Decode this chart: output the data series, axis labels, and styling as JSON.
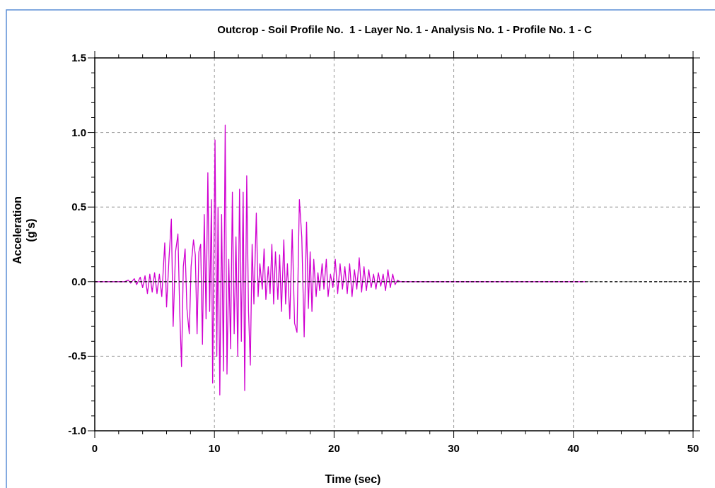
{
  "chart_data": {
    "type": "line",
    "title": "Outcrop - Soil Profile No.  1 - Layer No. 1 - Analysis No. 1 - Profile No. 1 - C",
    "xlabel": "Time (sec)",
    "ylabel": "Acceleration\n(g's)",
    "xlim": [
      0,
      50
    ],
    "ylim": [
      -1.0,
      1.5
    ],
    "xticks": [
      {
        "value": 0,
        "label": "0"
      },
      {
        "value": 2,
        "label": null
      },
      {
        "value": 4,
        "label": null
      },
      {
        "value": 6,
        "label": null
      },
      {
        "value": 8,
        "label": null
      },
      {
        "value": 10,
        "label": "10"
      },
      {
        "value": 12,
        "label": null
      },
      {
        "value": 14,
        "label": null
      },
      {
        "value": 16,
        "label": null
      },
      {
        "value": 18,
        "label": null
      },
      {
        "value": 20,
        "label": "20"
      },
      {
        "value": 22,
        "label": null
      },
      {
        "value": 24,
        "label": null
      },
      {
        "value": 26,
        "label": null
      },
      {
        "value": 28,
        "label": null
      },
      {
        "value": 30,
        "label": "30"
      },
      {
        "value": 32,
        "label": null
      },
      {
        "value": 34,
        "label": null
      },
      {
        "value": 36,
        "label": null
      },
      {
        "value": 38,
        "label": null
      },
      {
        "value": 40,
        "label": "40"
      },
      {
        "value": 42,
        "label": null
      },
      {
        "value": 44,
        "label": null
      },
      {
        "value": 46,
        "label": null
      },
      {
        "value": 48,
        "label": null
      },
      {
        "value": 50,
        "label": "50"
      }
    ],
    "yticks": [
      {
        "value": -1.0,
        "label": "-1.0"
      },
      {
        "value": -0.9,
        "label": null
      },
      {
        "value": -0.8,
        "label": null
      },
      {
        "value": -0.7,
        "label": null
      },
      {
        "value": -0.6,
        "label": null
      },
      {
        "value": -0.5,
        "label": "-0.5"
      },
      {
        "value": -0.4,
        "label": null
      },
      {
        "value": -0.3,
        "label": null
      },
      {
        "value": -0.2,
        "label": null
      },
      {
        "value": -0.1,
        "label": null
      },
      {
        "value": 0,
        "label": "0.0"
      },
      {
        "value": 0.1,
        "label": null
      },
      {
        "value": 0.2,
        "label": null
      },
      {
        "value": 0.3,
        "label": null
      },
      {
        "value": 0.4,
        "label": null
      },
      {
        "value": 0.5,
        "label": "0.5"
      },
      {
        "value": 0.6,
        "label": null
      },
      {
        "value": 0.7,
        "label": null
      },
      {
        "value": 0.8,
        "label": null
      },
      {
        "value": 0.9,
        "label": null
      },
      {
        "value": 1.0,
        "label": "1.0"
      },
      {
        "value": 1.1,
        "label": null
      },
      {
        "value": 1.2,
        "label": null
      },
      {
        "value": 1.3,
        "label": null
      },
      {
        "value": 1.4,
        "label": null
      },
      {
        "value": 1.5,
        "label": "1.5"
      }
    ],
    "grid": true,
    "line_style": "solid",
    "ref_lines": [
      {
        "axis": "y",
        "value": 0,
        "color": "#000000",
        "line_style": "dashed"
      }
    ],
    "series": [
      {
        "color": "#d000d0",
        "x": [
          0,
          2.5,
          2.8,
          3.0,
          3.3,
          3.5,
          3.8,
          4.0,
          4.2,
          4.4,
          4.6,
          4.8,
          5.0,
          5.2,
          5.4,
          5.6,
          5.85,
          6.0,
          6.2,
          6.4,
          6.55,
          6.75,
          6.95,
          7.1,
          7.25,
          7.4,
          7.55,
          7.7,
          7.9,
          8.05,
          8.25,
          8.4,
          8.55,
          8.7,
          8.85,
          9.0,
          9.15,
          9.3,
          9.45,
          9.6,
          9.75,
          9.85,
          10.05,
          10.2,
          10.3,
          10.45,
          10.6,
          10.75,
          10.9,
          11.05,
          11.2,
          11.35,
          11.5,
          11.65,
          11.8,
          11.95,
          12.1,
          12.25,
          12.4,
          12.53,
          12.7,
          12.85,
          13.0,
          13.15,
          13.3,
          13.5,
          13.65,
          13.8,
          14.0,
          14.15,
          14.3,
          14.5,
          14.65,
          14.8,
          14.95,
          15.1,
          15.3,
          15.45,
          15.6,
          15.8,
          15.95,
          16.1,
          16.3,
          16.5,
          16.7,
          16.9,
          17.1,
          17.3,
          17.5,
          17.7,
          17.85,
          18.0,
          18.15,
          18.3,
          18.5,
          18.65,
          18.8,
          19.0,
          19.15,
          19.35,
          19.5,
          19.7,
          19.9,
          20.1,
          20.3,
          20.5,
          20.7,
          20.9,
          21.1,
          21.3,
          21.5,
          21.7,
          21.9,
          22.1,
          22.3,
          22.5,
          22.7,
          22.9,
          23.1,
          23.3,
          23.5,
          23.7,
          23.9,
          24.1,
          24.3,
          24.5,
          24.7,
          24.9,
          25.1,
          25.3,
          25.5,
          41
        ],
        "values": [
          0,
          0,
          0.01,
          -0.01,
          0.02,
          -0.02,
          0.03,
          -0.04,
          0.04,
          -0.08,
          0.05,
          -0.07,
          0.06,
          -0.08,
          0.05,
          -0.1,
          0.26,
          -0.17,
          0.15,
          0.42,
          -0.3,
          0.2,
          0.32,
          -0.2,
          -0.57,
          0.1,
          0.22,
          -0.18,
          -0.35,
          0.1,
          0.28,
          0.18,
          -0.35,
          0.2,
          0.25,
          -0.42,
          0.45,
          -0.25,
          0.73,
          -0.2,
          0.55,
          -0.68,
          0.95,
          -0.5,
          0.5,
          -0.76,
          0.45,
          -0.6,
          1.05,
          -0.62,
          0.15,
          -0.45,
          0.6,
          -0.35,
          0.3,
          -0.5,
          0.62,
          -0.4,
          0.6,
          -0.73,
          0.71,
          -0.2,
          -0.56,
          0.25,
          -0.15,
          0.46,
          -0.1,
          0.12,
          -0.05,
          0.22,
          -0.12,
          0.1,
          -0.08,
          0.25,
          -0.15,
          0.2,
          -0.12,
          0.18,
          -0.2,
          0.28,
          -0.15,
          0.12,
          -0.25,
          0.35,
          -0.28,
          -0.34,
          0.55,
          0.3,
          -0.37,
          0.4,
          -0.18,
          0.2,
          -0.2,
          0.15,
          -0.1,
          0.06,
          -0.06,
          0.12,
          -0.05,
          0.15,
          -0.1,
          0.05,
          -0.04,
          0.15,
          -0.08,
          0.12,
          -0.05,
          0.1,
          -0.08,
          0.12,
          -0.1,
          0.08,
          -0.05,
          0.16,
          -0.07,
          0.1,
          -0.06,
          0.08,
          -0.04,
          0.05,
          -0.05,
          0.06,
          -0.03,
          0.05,
          -0.06,
          0.08,
          -0.04,
          0.05,
          -0.02,
          0.01,
          0,
          0
        ]
      }
    ]
  }
}
